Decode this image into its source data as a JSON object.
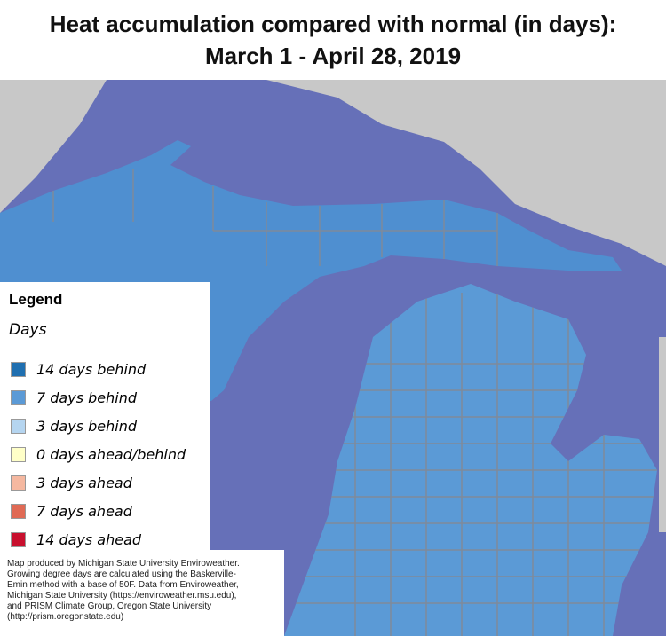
{
  "title": [
    "Heat accumulation compared with normal (in days):",
    "March 1 - April 28, 2019"
  ],
  "legend": {
    "title": "Legend",
    "subtitle": "Days",
    "items": [
      {
        "label": "14 days behind",
        "color": "#1f6fb0"
      },
      {
        "label": "7 days behind",
        "color": "#5b9ad6"
      },
      {
        "label": "3 days behind",
        "color": "#b5d5f0"
      },
      {
        "label": "0 days ahead/behind",
        "color": "#ffffc8"
      },
      {
        "label": "3 days ahead",
        "color": "#f5b8a0"
      },
      {
        "label": "7 days ahead",
        "color": "#e06a55"
      },
      {
        "label": "14 days ahead",
        "color": "#c8102e"
      }
    ]
  },
  "credit": [
    "Map produced by Michigan State University Enviroweather.",
    "Growing degree days are calculated using the Baskerville-",
    "Emin method with a base of 50F.  Data from Enviroweather,",
    "Michigan State University (https://enviroweather.msu.edu),",
    "and PRISM Climate Group, Oregon State University",
    "(http://prism.oregonstate.edu)"
  ]
}
